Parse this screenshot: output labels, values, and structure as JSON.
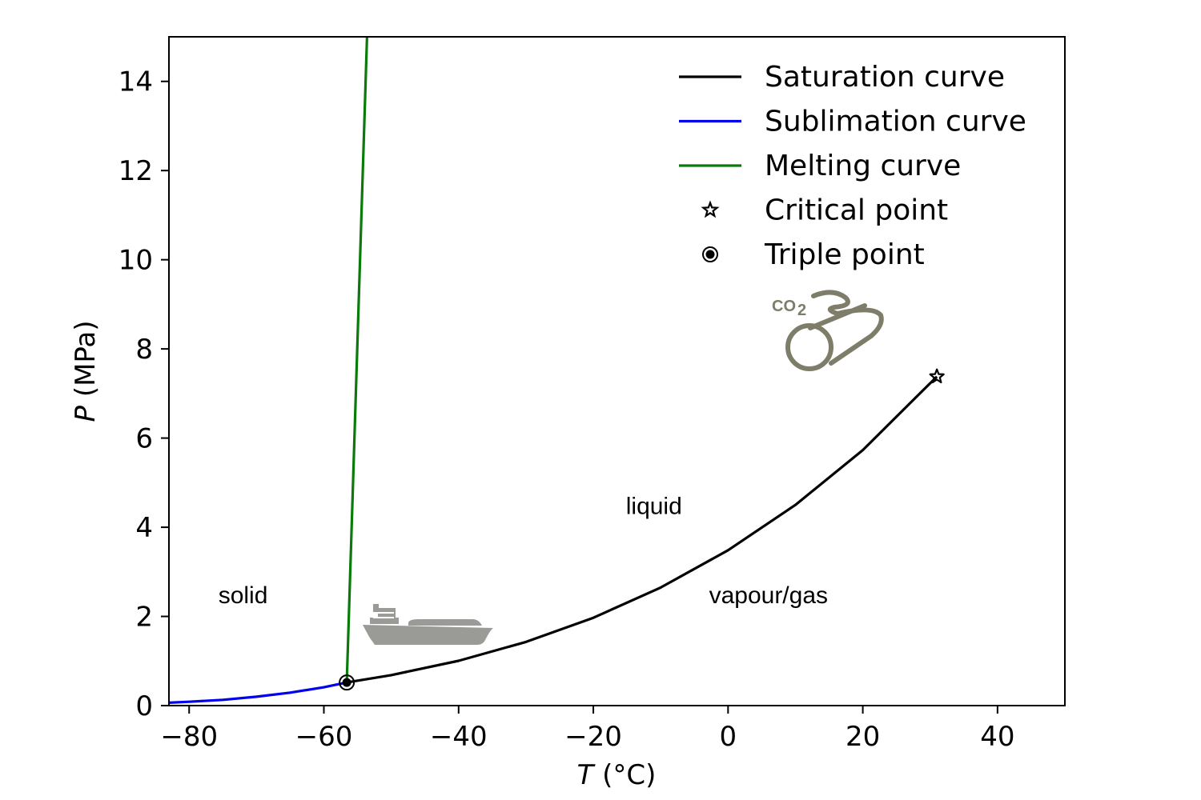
{
  "colors": {
    "saturation": "#000000",
    "sublimation": "#0000ee",
    "melting": "#0a7a0a",
    "icon_gray": "#9a9a96",
    "pipe_olive": "#7d7d6a"
  },
  "chart_data": {
    "type": "line",
    "xlabel_var": "T",
    "xlabel_unit": " (°C)",
    "ylabel_var": "P",
    "ylabel_unit": " (MPa)",
    "xlim": [
      -83,
      50
    ],
    "ylim": [
      0,
      15
    ],
    "x_ticks": [
      -80,
      -60,
      -40,
      -20,
      0,
      20,
      40
    ],
    "x_tick_labels": [
      "−80",
      "−60",
      "−40",
      "−20",
      "0",
      "20",
      "40"
    ],
    "y_ticks": [
      0,
      2,
      4,
      6,
      8,
      10,
      12,
      14
    ],
    "y_tick_labels": [
      "0",
      "2",
      "4",
      "6",
      "8",
      "10",
      "12",
      "14"
    ],
    "grid": false,
    "legend_position": "top-right",
    "series": [
      {
        "name": "Saturation curve",
        "color": "#000000",
        "kind": "line",
        "points": [
          [
            -56.6,
            0.518
          ],
          [
            -50,
            0.683
          ],
          [
            -40,
            1.005
          ],
          [
            -30,
            1.428
          ],
          [
            -20,
            1.97
          ],
          [
            -10,
            2.649
          ],
          [
            0,
            3.485
          ],
          [
            10,
            4.502
          ],
          [
            20,
            5.73
          ],
          [
            31.0,
            7.38
          ]
        ]
      },
      {
        "name": "Sublimation curve",
        "color": "#0000ee",
        "kind": "line",
        "points": [
          [
            -83,
            0.065
          ],
          [
            -80,
            0.087
          ],
          [
            -75,
            0.13
          ],
          [
            -70,
            0.2
          ],
          [
            -65,
            0.29
          ],
          [
            -60,
            0.41
          ],
          [
            -56.6,
            0.518
          ]
        ]
      },
      {
        "name": "Melting curve",
        "color": "#0a7a0a",
        "kind": "line",
        "points": [
          [
            -56.6,
            0.518
          ],
          [
            -53.6,
            15
          ]
        ]
      },
      {
        "name": "Critical point",
        "color": "#000000",
        "kind": "star",
        "points": [
          [
            31.0,
            7.38
          ]
        ]
      },
      {
        "name": "Triple point",
        "color": "#000000",
        "kind": "circle",
        "points": [
          [
            -56.6,
            0.518
          ]
        ]
      }
    ],
    "annotations": [
      {
        "text": "solid",
        "x": -72,
        "y": 2.3
      },
      {
        "text": "liquid",
        "x": -11,
        "y": 4.3
      },
      {
        "text": "vapour/gas",
        "x": 6,
        "y": 2.3
      }
    ]
  },
  "icons": {
    "ship": "ship-icon",
    "pipeline": "co2-pipeline-icon",
    "pipeline_text_main": "CO",
    "pipeline_text_sub": "2"
  }
}
